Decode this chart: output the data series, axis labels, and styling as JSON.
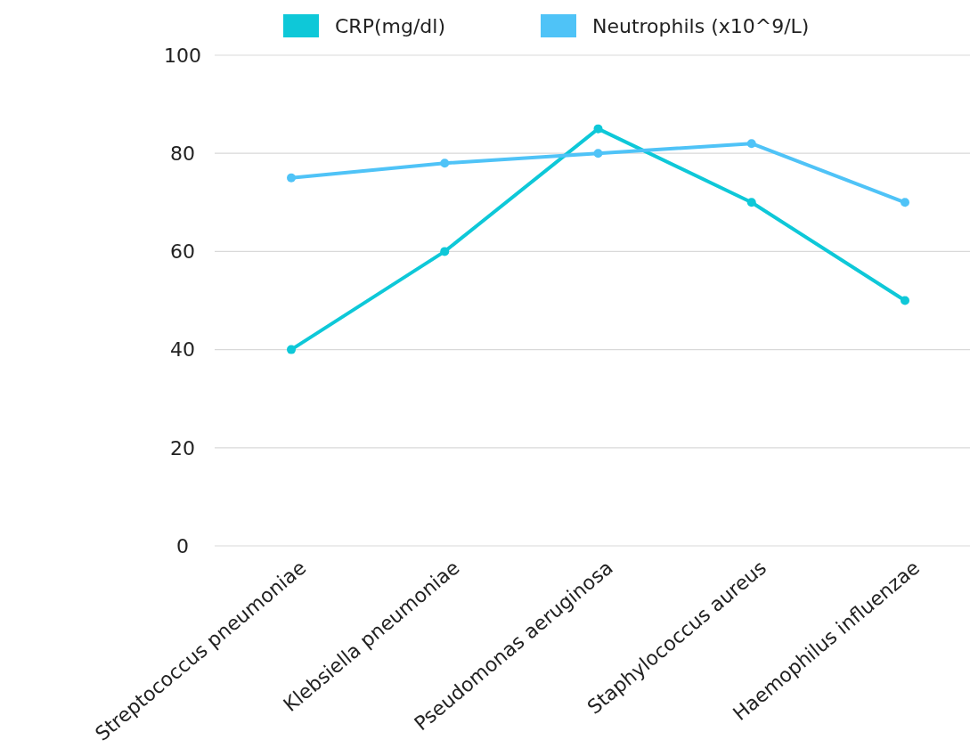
{
  "chart_data": {
    "type": "line",
    "categories": [
      "Streptococcus pneumoniae",
      "Klebsiella pneumoniae",
      "Pseudomonas aeruginosa",
      "Staphylococcus aureus",
      "Haemophilus influenzae"
    ],
    "series": [
      {
        "name": "CRP(mg/dl)",
        "color": "#0ec8d8",
        "values": [
          40,
          60,
          85,
          70,
          50
        ]
      },
      {
        "name": "Neutrophils (x10^9/L)",
        "color": "#4fc3f7",
        "values": [
          75,
          78,
          80,
          82,
          70
        ]
      }
    ],
    "ylim": [
      0,
      100
    ],
    "yticks": [
      0,
      20,
      40,
      60,
      80,
      100
    ],
    "grid": "y",
    "legend": "top",
    "marker": "circle",
    "line_style": "solid"
  }
}
